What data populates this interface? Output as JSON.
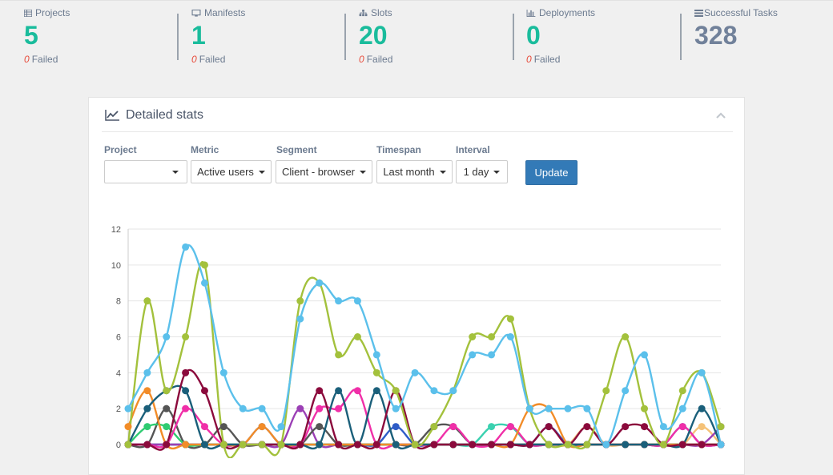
{
  "stats": [
    {
      "label": "Projects",
      "icon": "table-icon",
      "value": "5",
      "failed": "0",
      "failed_text": "Failed",
      "value_color": "#1abc9c"
    },
    {
      "label": "Manifests",
      "icon": "desktop-icon",
      "value": "1",
      "failed": "0",
      "failed_text": "Failed",
      "value_color": "#1abc9c"
    },
    {
      "label": "Slots",
      "icon": "sitemap-icon",
      "value": "20",
      "failed": "0",
      "failed_text": "Failed",
      "value_color": "#1abc9c"
    },
    {
      "label": "Deployments",
      "icon": "bar-chart-icon",
      "value": "0",
      "failed": "0",
      "failed_text": "Failed",
      "value_color": "#1abc9c"
    },
    {
      "label": "Successful Tasks",
      "icon": "tasks-icon",
      "value": "328",
      "value_color": "#71819a"
    }
  ],
  "panel": {
    "title": "Detailed stats",
    "filters": {
      "project_label": "Project",
      "project_value": "",
      "metric_label": "Metric",
      "metric_value": "Active users",
      "segment_label": "Segment",
      "segment_value": "Client - browser",
      "timespan_label": "Timespan",
      "timespan_value": "Last month",
      "interval_label": "Interval",
      "interval_value": "1 day"
    },
    "update_label": "Update"
  },
  "chart_data": {
    "type": "line",
    "ylim": [
      0,
      12
    ],
    "yticks": [
      0,
      2,
      4,
      6,
      8,
      10,
      12
    ],
    "grid": true,
    "x": [
      0,
      1,
      2,
      3,
      4,
      5,
      6,
      7,
      8,
      9,
      10,
      11,
      12,
      13,
      14,
      15,
      16,
      17,
      18,
      19,
      20,
      21,
      22,
      23,
      24,
      25,
      26,
      27,
      28,
      29,
      30,
      31
    ],
    "series": [
      {
        "color": "#5bc0eb",
        "values": [
          2,
          4,
          6,
          11,
          9,
          4,
          2,
          2,
          1,
          7,
          9,
          8,
          8,
          5,
          2,
          4,
          3,
          3,
          5,
          5,
          6,
          2,
          2,
          2,
          2,
          0,
          3,
          5,
          1,
          2,
          4,
          0
        ]
      },
      {
        "color": "#a3c13c",
        "values": [
          0,
          8,
          3,
          6,
          10,
          0,
          0,
          0,
          0,
          8,
          9,
          5,
          6,
          4,
          3,
          0,
          1,
          3,
          6,
          6,
          7,
          2,
          0,
          0,
          0,
          3,
          6,
          2,
          0,
          3,
          4,
          1
        ]
      },
      {
        "color": "#8b0a3c",
        "values": [
          0,
          0,
          0,
          4,
          3,
          0,
          0,
          0,
          0,
          0,
          3,
          0,
          0,
          0,
          3,
          0,
          0,
          0,
          0,
          0,
          0,
          0,
          1,
          0,
          1,
          0,
          1,
          1,
          0,
          0,
          0,
          0
        ]
      },
      {
        "color": "#1a5f7a",
        "values": [
          0,
          2,
          3,
          3,
          0,
          0,
          0,
          0,
          0,
          0,
          0,
          3,
          0,
          3,
          0,
          0,
          0,
          0,
          0,
          0,
          0,
          0,
          0,
          0,
          0,
          0,
          0,
          0,
          0,
          0,
          2,
          0
        ]
      },
      {
        "color": "#f28c28",
        "values": [
          1,
          3,
          0,
          0,
          0,
          0,
          0,
          1,
          0,
          0,
          0,
          0,
          0,
          0,
          0,
          0,
          0,
          0,
          0,
          0,
          0,
          2,
          2,
          0,
          0,
          0,
          0,
          0,
          0,
          0,
          0,
          0
        ]
      },
      {
        "color": "#f02fa8",
        "values": [
          0,
          0,
          0,
          2,
          1,
          0,
          0,
          0,
          0,
          0,
          2,
          2,
          3,
          0,
          0,
          0,
          0,
          1,
          0,
          0,
          1,
          0,
          0,
          0,
          0,
          0,
          0,
          0,
          0,
          1,
          0,
          0
        ]
      },
      {
        "color": "#2ecc71",
        "values": [
          0,
          1,
          1,
          0,
          0,
          0,
          0,
          0,
          0,
          0,
          0,
          0,
          0,
          0,
          0,
          0,
          0,
          0,
          0,
          0,
          0,
          0,
          0,
          0,
          0,
          0,
          0,
          0,
          0,
          0,
          0,
          0
        ]
      },
      {
        "color": "#555555",
        "values": [
          0,
          0,
          2,
          0,
          0,
          1,
          0,
          0,
          0,
          0,
          1,
          0,
          0,
          0,
          0,
          0,
          1,
          1,
          0,
          0,
          0,
          0,
          0,
          0,
          0,
          0,
          0,
          0,
          0,
          0,
          0,
          0
        ]
      },
      {
        "color": "#9b3fb5",
        "values": [
          0,
          0,
          0,
          0,
          0,
          0,
          0,
          0,
          0,
          2,
          0,
          0,
          0,
          0,
          0,
          0,
          0,
          0,
          0,
          0,
          0,
          0,
          0,
          0,
          0,
          0,
          0,
          0,
          0,
          0,
          0,
          1
        ]
      },
      {
        "color": "#2e5cc7",
        "values": [
          0,
          0,
          0,
          0,
          0,
          0,
          0,
          1,
          0,
          0,
          0,
          0,
          0,
          0,
          1,
          0,
          0,
          0,
          0,
          0,
          0,
          0,
          1,
          0,
          0,
          0,
          0,
          0,
          0,
          1,
          0,
          0
        ]
      },
      {
        "color": "#3bd1b0",
        "values": [
          0,
          0,
          0,
          0,
          0,
          0,
          0,
          0,
          0,
          0,
          0,
          0,
          0,
          0,
          0,
          0,
          0,
          0,
          0,
          1,
          1,
          0,
          0,
          0,
          0,
          0,
          0,
          0,
          0,
          0,
          0,
          0
        ]
      },
      {
        "color": "#f5c278",
        "values": [
          0,
          0,
          0,
          0,
          0,
          0,
          0,
          0,
          0,
          0,
          0,
          0,
          0,
          0,
          0,
          0,
          0,
          0,
          0,
          0,
          0,
          0,
          0,
          0,
          1,
          0,
          0,
          0,
          0,
          0,
          1,
          0
        ]
      }
    ]
  }
}
